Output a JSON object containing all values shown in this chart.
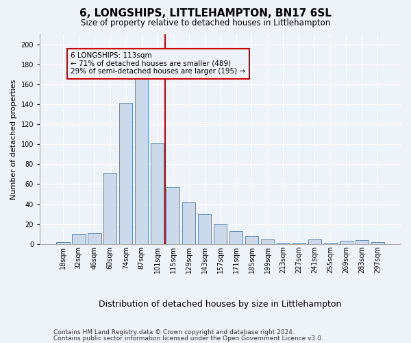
{
  "title": "6, LONGSHIPS, LITTLEHAMPTON, BN17 6SL",
  "subtitle": "Size of property relative to detached houses in Littlehampton",
  "xlabel": "Distribution of detached houses by size in Littlehampton",
  "ylabel": "Number of detached properties",
  "categories": [
    "18sqm",
    "32sqm",
    "46sqm",
    "60sqm",
    "74sqm",
    "87sqm",
    "101sqm",
    "115sqm",
    "129sqm",
    "143sqm",
    "157sqm",
    "171sqm",
    "185sqm",
    "199sqm",
    "213sqm",
    "227sqm",
    "241sqm",
    "255sqm",
    "269sqm",
    "283sqm",
    "297sqm"
  ],
  "values": [
    2,
    10,
    11,
    71,
    141,
    167,
    101,
    57,
    42,
    30,
    20,
    13,
    8,
    5,
    1,
    1,
    5,
    1,
    3,
    4,
    2
  ],
  "bar_color": "#ccd9ea",
  "bar_edge_color": "#5b8db8",
  "vline_x_index": 7,
  "vline_color": "#cc0000",
  "annotation_text": "6 LONGSHIPS: 113sqm\n← 71% of detached houses are smaller (489)\n29% of semi-detached houses are larger (195) →",
  "annotation_box_edge": "#cc0000",
  "ylim": [
    0,
    210
  ],
  "yticks": [
    0,
    20,
    40,
    60,
    80,
    100,
    120,
    140,
    160,
    180,
    200
  ],
  "footer1": "Contains HM Land Registry data © Crown copyright and database right 2024.",
  "footer2": "Contains public sector information licensed under the Open Government Licence v3.0.",
  "background_color": "#eef2f9",
  "grid_color": "#ffffff",
  "title_fontsize": 11,
  "subtitle_fontsize": 8.5,
  "ylabel_fontsize": 8,
  "xlabel_fontsize": 9,
  "tick_fontsize": 7,
  "footer_fontsize": 6.5,
  "annotation_fontsize": 7.5
}
